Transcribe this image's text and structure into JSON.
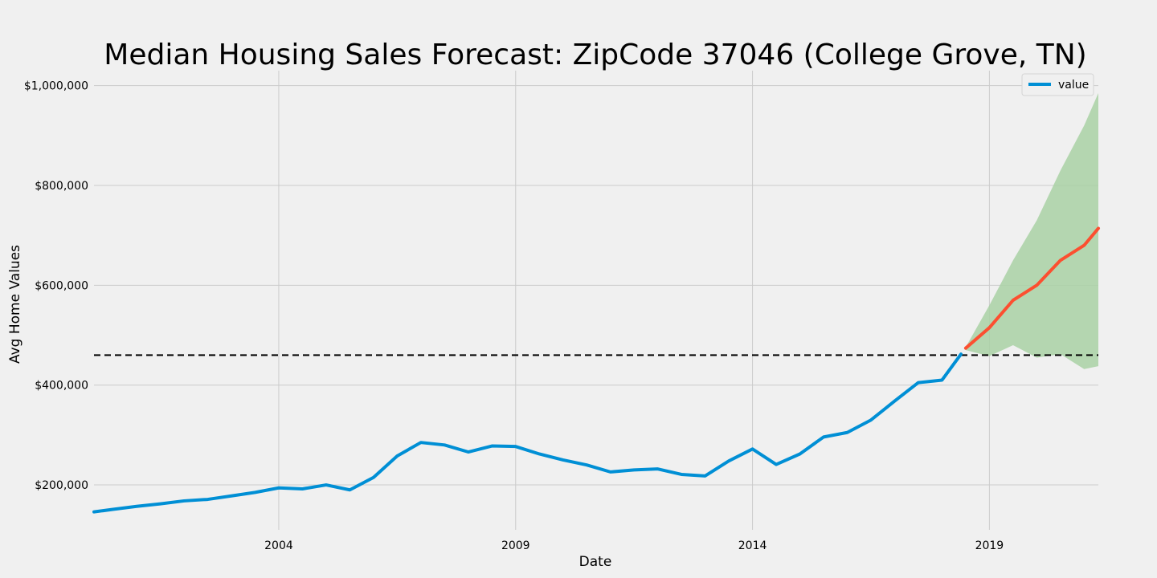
{
  "chart_data": {
    "type": "line",
    "title": "Median Housing Sales Forecast: ZipCode 37046 (College Grove, TN)",
    "xlabel": "Date",
    "ylabel": "Avg Home Values",
    "xlim": [
      2000.1,
      2021.3
    ],
    "ylim": [
      110000,
      1030000
    ],
    "x_ticks": [
      2004,
      2009,
      2014,
      2019
    ],
    "x_tick_labels": [
      "2004",
      "2009",
      "2014",
      "2019"
    ],
    "y_ticks": [
      200000,
      400000,
      600000,
      800000,
      1000000
    ],
    "y_tick_labels": [
      "$200,000",
      "$400,000",
      "$600,000",
      "$800,000",
      "$1,000,000"
    ],
    "grid": true,
    "legend": {
      "position": "top-right",
      "entries": [
        "value"
      ]
    },
    "reference_line": {
      "y": 460000,
      "style": "dashed",
      "color": "#000000"
    },
    "colors": {
      "observed": "#008fd5",
      "forecast": "#fc4f30",
      "confidence_band": "#a9d1a4",
      "background": "#f0f0f0",
      "grid": "#cbcbcb"
    },
    "series": [
      {
        "name": "value",
        "role": "observed",
        "points": [
          [
            2000.1,
            146000
          ],
          [
            2000.5,
            151000
          ],
          [
            2001.0,
            157000
          ],
          [
            2001.5,
            162000
          ],
          [
            2002.0,
            168000
          ],
          [
            2002.5,
            171000
          ],
          [
            2003.0,
            178000
          ],
          [
            2003.5,
            185000
          ],
          [
            2004.0,
            194000
          ],
          [
            2004.5,
            192000
          ],
          [
            2005.0,
            200000
          ],
          [
            2005.5,
            190000
          ],
          [
            2006.0,
            215000
          ],
          [
            2006.5,
            258000
          ],
          [
            2007.0,
            285000
          ],
          [
            2007.5,
            280000
          ],
          [
            2008.0,
            266000
          ],
          [
            2008.5,
            278000
          ],
          [
            2009.0,
            277000
          ],
          [
            2009.5,
            262000
          ],
          [
            2010.0,
            250000
          ],
          [
            2010.5,
            240000
          ],
          [
            2011.0,
            226000
          ],
          [
            2011.5,
            230000
          ],
          [
            2012.0,
            232000
          ],
          [
            2012.5,
            221000
          ],
          [
            2013.0,
            218000
          ],
          [
            2013.5,
            248000
          ],
          [
            2014.0,
            272000
          ],
          [
            2014.5,
            241000
          ],
          [
            2015.0,
            262000
          ],
          [
            2015.5,
            296000
          ],
          [
            2016.0,
            305000
          ],
          [
            2016.5,
            330000
          ],
          [
            2017.0,
            368000
          ],
          [
            2017.5,
            405000
          ],
          [
            2018.0,
            410000
          ],
          [
            2018.4,
            462000
          ]
        ]
      },
      {
        "role": "forecast",
        "points": [
          [
            2018.5,
            474000
          ],
          [
            2019.0,
            515000
          ],
          [
            2019.5,
            570000
          ],
          [
            2020.0,
            600000
          ],
          [
            2020.5,
            650000
          ],
          [
            2021.0,
            680000
          ],
          [
            2021.3,
            714000
          ]
        ]
      }
    ],
    "confidence_band": {
      "upper": [
        [
          2018.5,
          476000
        ],
        [
          2019.0,
          560000
        ],
        [
          2019.5,
          650000
        ],
        [
          2020.0,
          730000
        ],
        [
          2020.5,
          830000
        ],
        [
          2021.0,
          920000
        ],
        [
          2021.3,
          985000
        ]
      ],
      "lower": [
        [
          2018.5,
          470000
        ],
        [
          2019.0,
          458000
        ],
        [
          2019.5,
          480000
        ],
        [
          2020.0,
          455000
        ],
        [
          2020.5,
          462000
        ],
        [
          2021.0,
          432000
        ],
        [
          2021.3,
          438000
        ]
      ]
    }
  }
}
